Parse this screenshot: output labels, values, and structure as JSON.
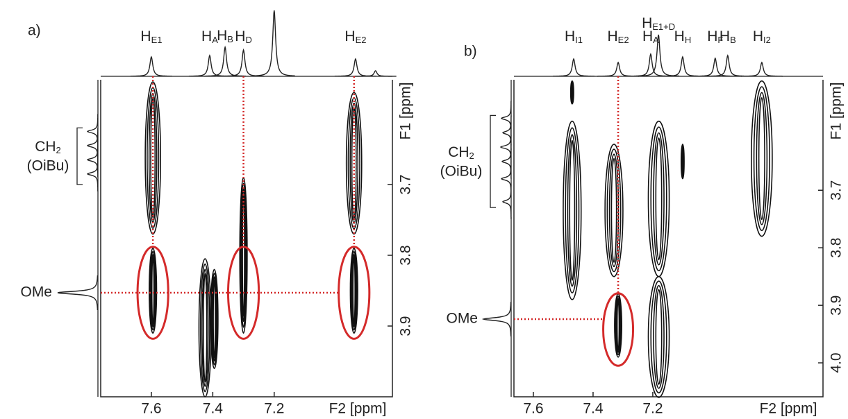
{
  "chart_data": [
    {
      "type": "nmr2d",
      "panel_label": "a)",
      "xlabel": "F2 [ppm]",
      "ylabel": "F1 [ppm]",
      "xlim": [
        7.765,
        6.815
      ],
      "ylim": [
        3.552,
        4.0
      ],
      "xticks": [
        7.6,
        7.4,
        7.2
      ],
      "yticks": [
        3.7,
        3.8,
        3.9
      ],
      "f2_projection": {
        "x": [
          7.6,
          7.41,
          7.36,
          7.3,
          7.2,
          6.935,
          6.87
        ],
        "height": [
          0.28,
          0.3,
          0.42,
          0.38,
          0.95,
          0.25,
          0.08
        ],
        "labels": [
          {
            "main": "H",
            "sub": "E1"
          },
          {
            "main": "H",
            "sub": "A"
          },
          {
            "main": "H",
            "sub": "B"
          },
          {
            "main": "H",
            "sub": "D"
          },
          null,
          {
            "main": "H",
            "sub": "E2"
          },
          null
        ]
      },
      "f1_projection": {
        "y": [
          3.625,
          3.645,
          3.665,
          3.685,
          3.853
        ],
        "height": [
          0.15,
          0.15,
          0.15,
          0.15,
          0.58
        ]
      },
      "cross_peaks": {
        "x": [
          7.595,
          7.595,
          7.425,
          7.395,
          7.3,
          6.94,
          6.94
        ],
        "y_from": [
          3.555,
          3.79,
          3.805,
          3.82,
          3.69,
          3.57,
          3.79
        ],
        "y_to": [
          3.77,
          3.91,
          4.0,
          3.96,
          3.91,
          3.77,
          3.91
        ],
        "half_width": [
          0.025,
          0.012,
          0.02,
          0.012,
          0.012,
          0.025,
          0.012
        ]
      },
      "highlights": {
        "x": [
          7.595,
          7.3,
          6.94
        ],
        "y": [
          3.853,
          3.853,
          3.853
        ],
        "dx": [
          0.05,
          0.05,
          0.05
        ],
        "dy": [
          0.065,
          0.065,
          0.065
        ]
      },
      "ch2_label": {
        "main": "CH",
        "sub": "2",
        "line2": "(OiBu)",
        "y_range": [
          3.62,
          3.7
        ]
      },
      "ome_label": {
        "text": "OMe",
        "y": 3.853
      }
    },
    {
      "type": "nmr2d",
      "panel_label": "b)",
      "xlabel": "F2 [ppm]",
      "ylabel": "F1 [ppm]",
      "xlim": [
        7.665,
        6.63
      ],
      "ylim": [
        3.508,
        4.059
      ],
      "xticks": [
        7.6,
        7.4,
        7.2
      ],
      "yticks": [
        3.7,
        3.8,
        3.9,
        {
          "value": 4,
          "label": "4.0"
        }
      ],
      "f2_projection": {
        "x": [
          7.465,
          7.316,
          7.207,
          7.181,
          7.1,
          6.991,
          6.949,
          6.835
        ],
        "height": [
          0.25,
          0.2,
          0.32,
          0.6,
          0.28,
          0.26,
          0.3,
          0.2
        ],
        "labels": [
          {
            "main": "H",
            "sub": "I1"
          },
          {
            "main": "H",
            "sub": "E2"
          },
          {
            "main": "H",
            "sub": "A"
          },
          {
            "main": "H",
            "sub": "E1+D"
          },
          {
            "main": "H",
            "sub": "H"
          },
          {
            "main": "H",
            "sub": "F"
          },
          {
            "main": "H",
            "sub": "B"
          },
          {
            "main": "H",
            "sub": "I2"
          }
        ]
      },
      "f1_projection": {
        "y": [
          3.575,
          3.6,
          3.625,
          3.65,
          3.68,
          3.72,
          3.924
        ],
        "height": [
          0.14,
          0.12,
          0.15,
          0.13,
          0.14,
          0.12,
          0.4
        ]
      },
      "cross_peaks": {
        "x": [
          7.47,
          7.47,
          7.33,
          7.316,
          7.18,
          7.18,
          7.1,
          6.835
        ],
        "y_from": [
          3.51,
          3.58,
          3.62,
          3.88,
          3.58,
          3.85,
          3.62,
          3.51
        ],
        "y_to": [
          3.55,
          3.89,
          3.85,
          3.99,
          3.85,
          4.06,
          3.68,
          3.78
        ],
        "half_width": [
          0.005,
          0.03,
          0.03,
          0.012,
          0.035,
          0.035,
          0.005,
          0.035
        ]
      },
      "highlights": {
        "x": [
          7.316
        ],
        "y": [
          3.942
        ],
        "dx": [
          0.05
        ],
        "dy": [
          0.063
        ]
      },
      "ch2_label": {
        "main": "CH",
        "sub": "2",
        "line2": "(OiBu)",
        "y_range": [
          3.57,
          3.73
        ]
      },
      "ome_label": {
        "text": "OMe",
        "y": 3.924
      }
    }
  ]
}
